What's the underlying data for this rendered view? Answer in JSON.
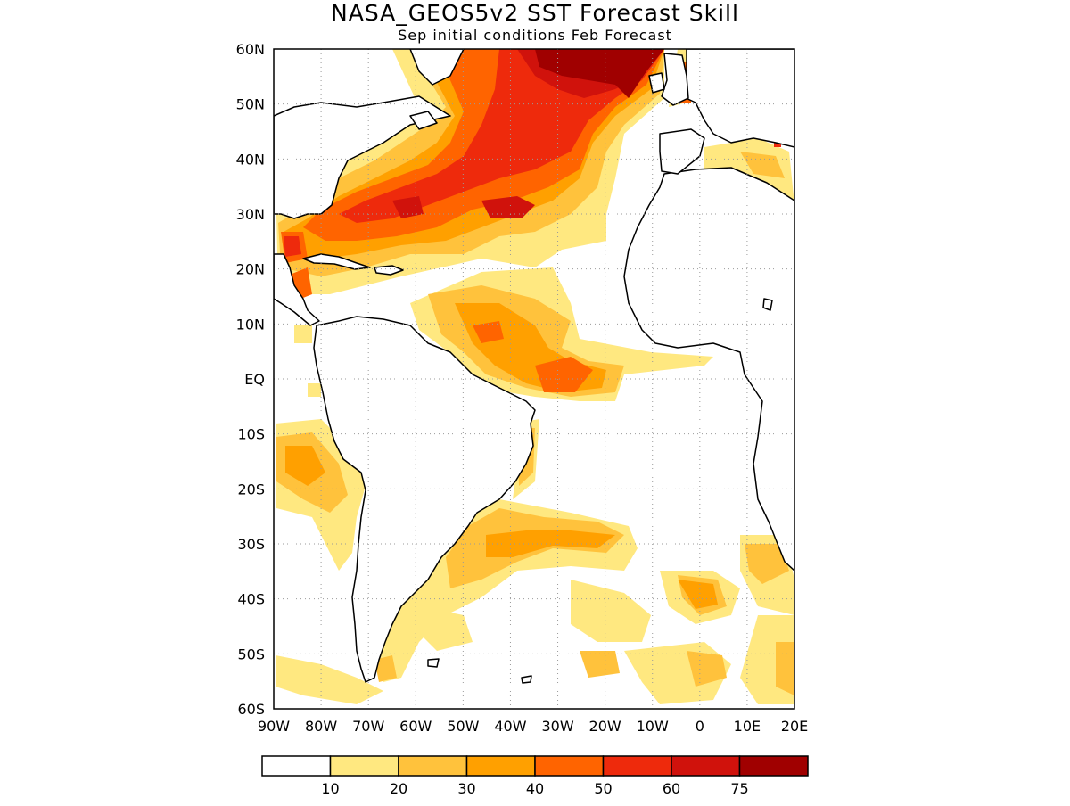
{
  "title": "NASA_GEOS5v2  SST  Forecast  Skill",
  "subtitle": "Sep  initial  conditions    Feb  Forecast",
  "lat_labels": [
    "60N",
    "50N",
    "40N",
    "30N",
    "20N",
    "10N",
    "EQ",
    "10S",
    "20S",
    "30S",
    "40S",
    "50S",
    "60S"
  ],
  "lon_labels": [
    "90W",
    "80W",
    "70W",
    "60W",
    "50W",
    "40W",
    "30W",
    "20W",
    "10W",
    "0",
    "10E",
    "20E"
  ],
  "colorbar": {
    "boundaries": [
      "10",
      "20",
      "30",
      "40",
      "50",
      "60",
      "75"
    ],
    "colors": [
      "#ffffff",
      "#ffe880",
      "#ffc23c",
      "#ffa000",
      "#ff6400",
      "#ee2a0c",
      "#d0120c",
      "#a00000"
    ]
  },
  "map": {
    "region": "Atlantic Ocean",
    "lon_range": [
      -90,
      20
    ],
    "lat_range": [
      -60,
      60
    ],
    "grid": "dotted every 10 degrees",
    "coastlines": "black"
  }
}
